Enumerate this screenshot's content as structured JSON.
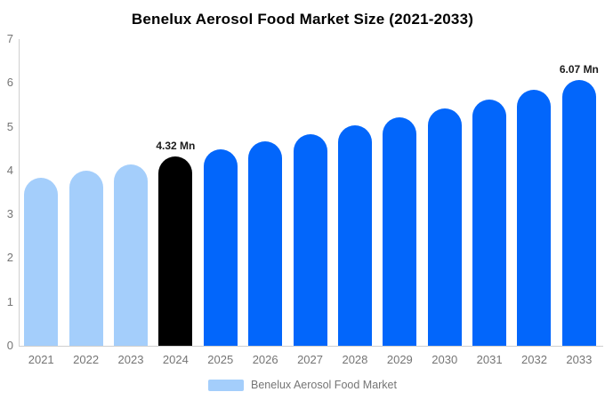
{
  "title": "Benelux Aerosol Food Market Size (2021-2033)",
  "legend": {
    "label": "Benelux Aerosol Food Market",
    "swatch_color": "#a4cefb"
  },
  "colors": {
    "historical_bar": "#a4cefb",
    "highlight_bar": "#000000",
    "forecast_bar": "#0266fb",
    "axis_text": "#757575",
    "axis_line": "#cfcfcf",
    "data_label": "#1b1b1b"
  },
  "chart_data": {
    "type": "bar",
    "title": "Benelux Aerosol Food Market Size (2021-2033)",
    "unit": "Mn",
    "categories": [
      "2021",
      "2022",
      "2023",
      "2024",
      "2025",
      "2026",
      "2027",
      "2028",
      "2029",
      "2030",
      "2031",
      "2032",
      "2033"
    ],
    "values": [
      3.84,
      3.99,
      4.15,
      4.32,
      4.49,
      4.66,
      4.84,
      5.03,
      5.22,
      5.42,
      5.63,
      5.85,
      6.07
    ],
    "bar_colors": [
      "#a4cefb",
      "#a4cefb",
      "#a4cefb",
      "#000000",
      "#0266fb",
      "#0266fb",
      "#0266fb",
      "#0266fb",
      "#0266fb",
      "#0266fb",
      "#0266fb",
      "#0266fb",
      "#0266fb"
    ],
    "point_labels": [
      "",
      "",
      "",
      "4.32 Mn",
      "",
      "",
      "",
      "",
      "",
      "",
      "",
      "",
      "6.07 Mn"
    ],
    "xlabel": "",
    "ylabel": "",
    "ylim": [
      0,
      7
    ],
    "yticks": [
      0,
      1,
      2,
      3,
      4,
      5,
      6,
      7
    ],
    "grid": false,
    "legend_position": "bottom",
    "legend_entries": [
      "Benelux Aerosol Food Market"
    ]
  }
}
